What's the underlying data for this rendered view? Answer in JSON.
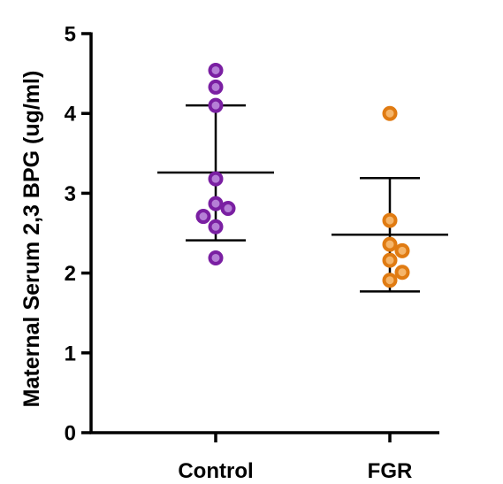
{
  "chart_data": {
    "type": "scatter",
    "title": "",
    "xlabel": "",
    "ylabel": "Maternal Serum 2,3 BPG (ug/ml)",
    "ylim": [
      0,
      5
    ],
    "yticks": [
      "0",
      "1",
      "2",
      "3",
      "4",
      "5"
    ],
    "categories": [
      "Control",
      "FGR"
    ],
    "grid": false,
    "legend": "none",
    "series": [
      {
        "category": "Control",
        "color": "#7a1fa2",
        "fill": "#b57fd6",
        "values": [
          4.54,
          4.33,
          4.1,
          3.18,
          2.87,
          2.81,
          2.71,
          2.58,
          2.19
        ],
        "mean": 3.26,
        "sd_upper": 4.1,
        "sd_lower": 2.41
      },
      {
        "category": "FGR",
        "color": "#e07b12",
        "fill": "#f5b56a",
        "values": [
          4.0,
          2.66,
          2.36,
          2.28,
          2.16,
          2.01,
          1.91
        ],
        "mean": 2.48,
        "sd_upper": 3.19,
        "sd_lower": 1.77
      }
    ]
  }
}
